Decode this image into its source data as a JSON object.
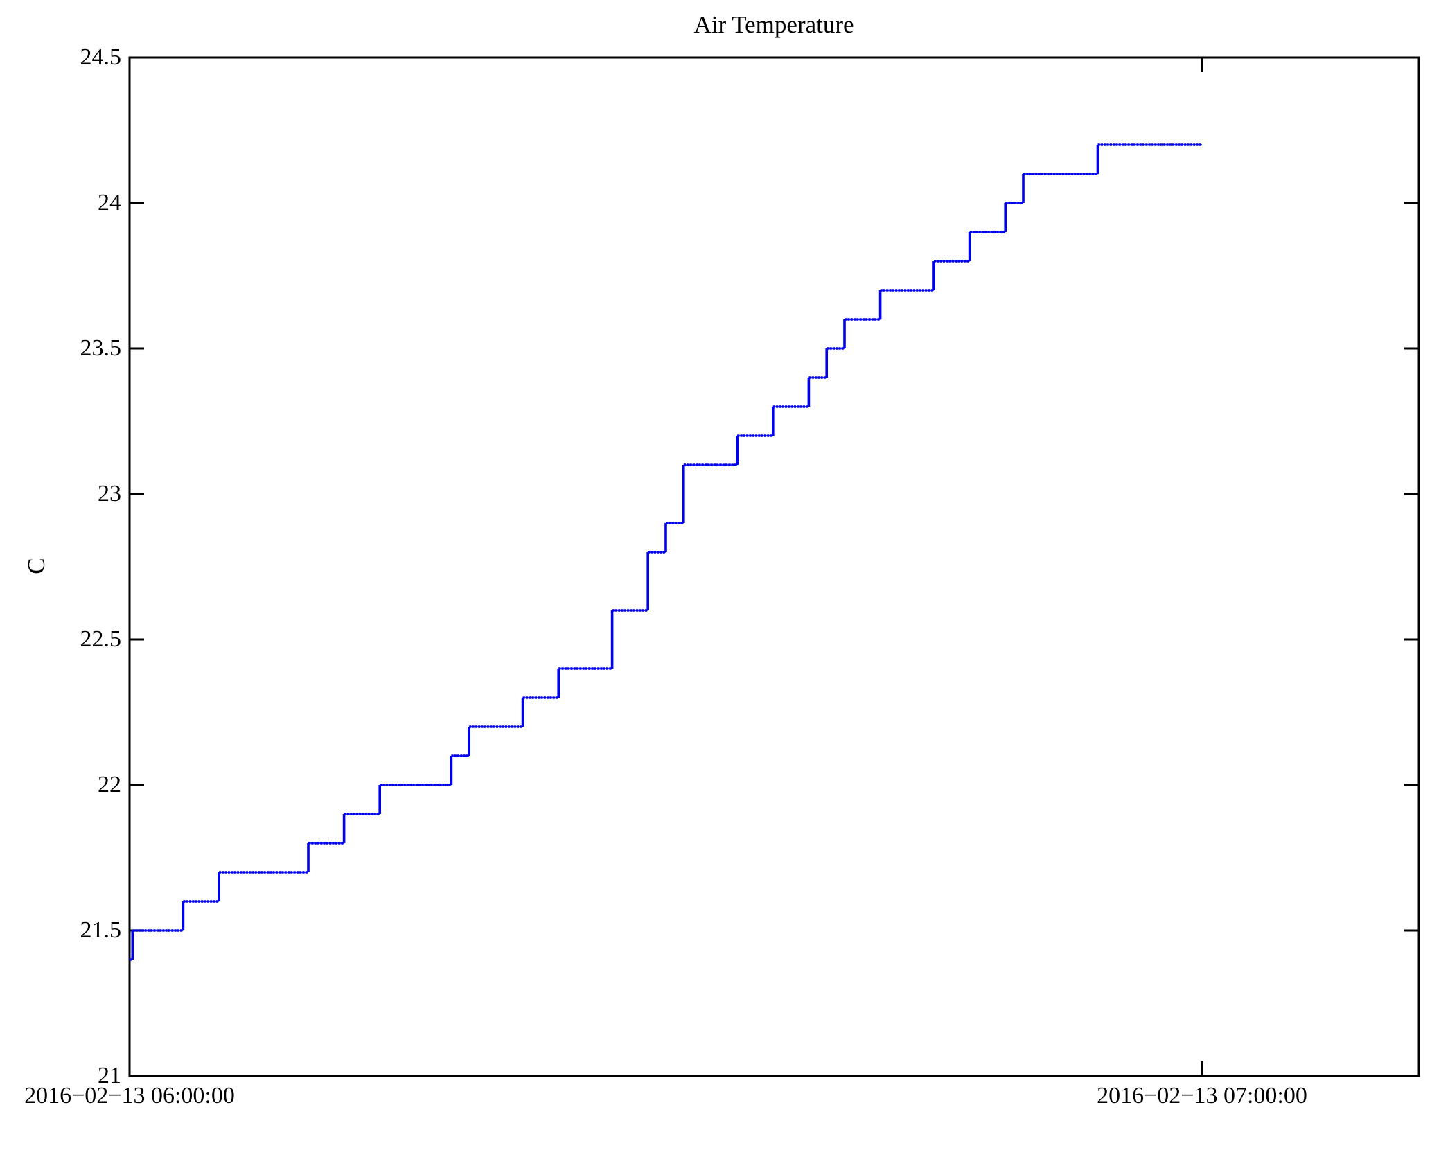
{
  "chart_data": {
    "type": "line",
    "subtype": "step",
    "title": "Air Temperature",
    "ylabel": "C",
    "xlabel": "",
    "line_color": "#0000f0",
    "axis_color": "#000000",
    "background_color": "#ffffff",
    "grid": "off",
    "legend": "none",
    "ylim": [
      21,
      24.5
    ],
    "yticks": [
      21,
      21.5,
      22,
      22.5,
      23,
      23.5,
      24,
      24.5
    ],
    "ytick_labels": [
      "21",
      "21.5",
      "22",
      "22.5",
      "23",
      "23.5",
      "24",
      "24.5"
    ],
    "xtick_times": [
      "06:00:00",
      "07:00:00"
    ],
    "xtick_labels": [
      "2016−02−13 06:00:00",
      "2016−02−13 07:00:00"
    ],
    "x_axis_start_time": "06:00:00",
    "x_axis_end_time": "07:12:08",
    "date": "2016-02-13",
    "series": [
      {
        "name": "Air Temperature",
        "unit": "C",
        "points": [
          [
            "06:00:00",
            21.4
          ],
          [
            "06:00:10",
            21.5
          ],
          [
            "06:03:00",
            21.6
          ],
          [
            "06:05:00",
            21.7
          ],
          [
            "06:10:00",
            21.8
          ],
          [
            "06:12:00",
            21.9
          ],
          [
            "06:14:00",
            22.0
          ],
          [
            "06:18:00",
            22.1
          ],
          [
            "06:19:00",
            22.2
          ],
          [
            "06:22:00",
            22.3
          ],
          [
            "06:24:00",
            22.4
          ],
          [
            "06:27:00",
            22.6
          ],
          [
            "06:29:00",
            22.8
          ],
          [
            "06:30:00",
            22.9
          ],
          [
            "06:31:00",
            23.1
          ],
          [
            "06:34:00",
            23.2
          ],
          [
            "06:36:00",
            23.3
          ],
          [
            "06:38:00",
            23.4
          ],
          [
            "06:39:00",
            23.5
          ],
          [
            "06:40:00",
            23.6
          ],
          [
            "06:42:00",
            23.7
          ],
          [
            "06:45:00",
            23.8
          ],
          [
            "06:47:00",
            23.9
          ],
          [
            "06:49:00",
            24.0
          ],
          [
            "06:50:00",
            24.1
          ],
          [
            "06:54:10",
            24.2
          ],
          [
            "07:00:00",
            24.2
          ]
        ]
      }
    ]
  }
}
